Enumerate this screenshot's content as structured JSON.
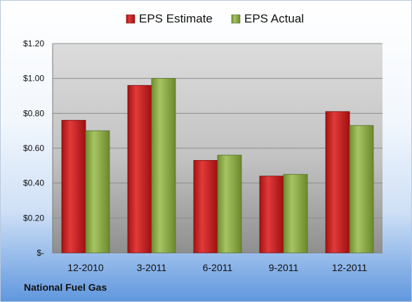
{
  "chart_data": {
    "type": "bar",
    "categories": [
      "12-2010",
      "3-2011",
      "6-2011",
      "9-2011",
      "12-2011"
    ],
    "series": [
      {
        "name": "EPS Estimate",
        "values": [
          0.76,
          0.96,
          0.53,
          0.44,
          0.81
        ],
        "color": "#cc1f1f"
      },
      {
        "name": "EPS Actual",
        "values": [
          0.7,
          1.0,
          0.56,
          0.45,
          0.73
        ],
        "color": "#8aab45"
      }
    ],
    "ylim": [
      0,
      1.2
    ],
    "yticks": [
      {
        "value": 0,
        "label": "$-"
      },
      {
        "value": 0.2,
        "label": "$0.20"
      },
      {
        "value": 0.4,
        "label": "$0.40"
      },
      {
        "value": 0.6,
        "label": "$0.60"
      },
      {
        "value": 0.8,
        "label": "$0.80"
      },
      {
        "value": 1.0,
        "label": "$1.00"
      },
      {
        "value": 1.2,
        "label": "$1.20"
      }
    ],
    "grid": true,
    "legend": "top-center"
  },
  "footer": {
    "company": "National Fuel Gas"
  }
}
